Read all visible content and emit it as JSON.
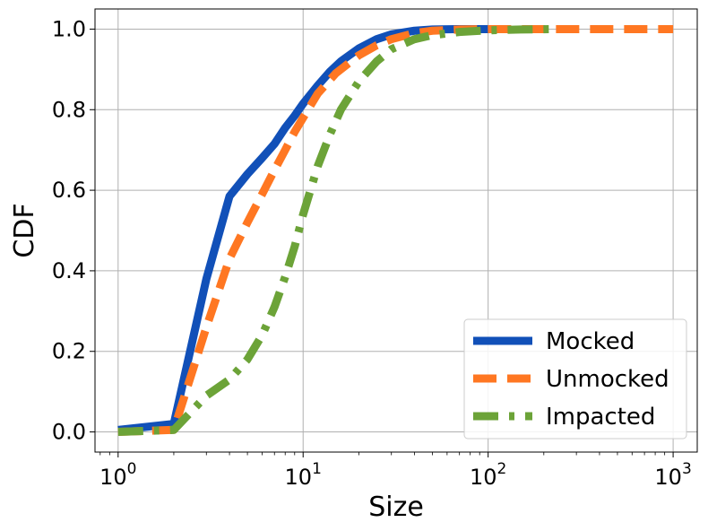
{
  "chart_data": {
    "type": "line",
    "xlabel": "Size",
    "ylabel": "CDF",
    "xscale": "log",
    "xlim": [
      0.75,
      1350
    ],
    "ylim": [
      -0.05,
      1.05
    ],
    "grid": true,
    "legend_position": "bottom-right",
    "x_ticks": [
      {
        "value": 1,
        "base": "10",
        "exp": "0"
      },
      {
        "value": 10,
        "base": "10",
        "exp": "1"
      },
      {
        "value": 100,
        "base": "10",
        "exp": "2"
      },
      {
        "value": 1000,
        "base": "10",
        "exp": "3"
      }
    ],
    "y_ticks": [
      {
        "value": 0.0,
        "label": "0.0"
      },
      {
        "value": 0.2,
        "label": "0.2"
      },
      {
        "value": 0.4,
        "label": "0.4"
      },
      {
        "value": 0.6,
        "label": "0.6"
      },
      {
        "value": 0.8,
        "label": "0.8"
      },
      {
        "value": 1.0,
        "label": "1.0"
      }
    ],
    "series": [
      {
        "name": "Mocked",
        "color": "#1150b8",
        "style": "solid",
        "points": [
          [
            1,
            0.005
          ],
          [
            2,
            0.02
          ],
          [
            3,
            0.38
          ],
          [
            4,
            0.585
          ],
          [
            5,
            0.64
          ],
          [
            6,
            0.68
          ],
          [
            7,
            0.715
          ],
          [
            8,
            0.755
          ],
          [
            9,
            0.785
          ],
          [
            10,
            0.815
          ],
          [
            12,
            0.86
          ],
          [
            14,
            0.895
          ],
          [
            16,
            0.92
          ],
          [
            20,
            0.952
          ],
          [
            25,
            0.975
          ],
          [
            30,
            0.987
          ],
          [
            40,
            0.996
          ],
          [
            50,
            0.999
          ],
          [
            70,
            1.0
          ],
          [
            115,
            1.0
          ]
        ]
      },
      {
        "name": "Unmocked",
        "color": "#ff7722",
        "style": "dashed",
        "points": [
          [
            1,
            0.0
          ],
          [
            2,
            0.005
          ],
          [
            3,
            0.26
          ],
          [
            4,
            0.43
          ],
          [
            5,
            0.52
          ],
          [
            6,
            0.59
          ],
          [
            7,
            0.65
          ],
          [
            8,
            0.7
          ],
          [
            9,
            0.745
          ],
          [
            10,
            0.78
          ],
          [
            12,
            0.84
          ],
          [
            15,
            0.89
          ],
          [
            20,
            0.935
          ],
          [
            25,
            0.96
          ],
          [
            30,
            0.975
          ],
          [
            40,
            0.99
          ],
          [
            50,
            0.996
          ],
          [
            70,
            0.999
          ],
          [
            100,
            1.0
          ],
          [
            1000,
            1.0
          ]
        ]
      },
      {
        "name": "Impacted",
        "color": "#6ca338",
        "style": "dashdot",
        "points": [
          [
            1,
            0.0
          ],
          [
            2,
            0.005
          ],
          [
            3,
            0.09
          ],
          [
            4,
            0.13
          ],
          [
            5,
            0.18
          ],
          [
            6,
            0.24
          ],
          [
            7,
            0.31
          ],
          [
            8,
            0.385
          ],
          [
            9,
            0.46
          ],
          [
            10,
            0.54
          ],
          [
            12,
            0.66
          ],
          [
            14,
            0.74
          ],
          [
            16,
            0.8
          ],
          [
            20,
            0.87
          ],
          [
            25,
            0.92
          ],
          [
            30,
            0.95
          ],
          [
            40,
            0.975
          ],
          [
            50,
            0.985
          ],
          [
            70,
            0.993
          ],
          [
            100,
            0.997
          ],
          [
            150,
            0.999
          ],
          [
            220,
            1.0
          ]
        ]
      }
    ]
  }
}
